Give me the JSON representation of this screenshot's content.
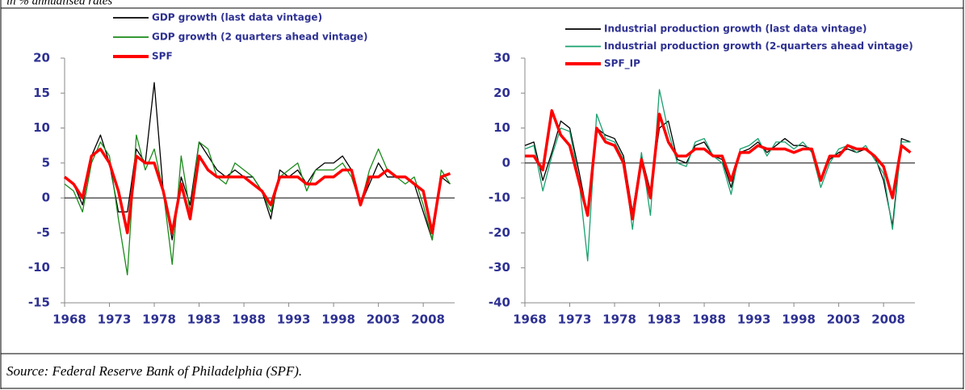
{
  "subtitle": "in % annualised rates",
  "source": "Source: Federal Reserve Bank of Philadelphia (SPF).",
  "chart_data": [
    {
      "type": "line",
      "x": [
        1968,
        1969,
        1970,
        1971,
        1972,
        1973,
        1974,
        1975,
        1976,
        1977,
        1978,
        1979,
        1980,
        1981,
        1982,
        1983,
        1984,
        1985,
        1986,
        1987,
        1988,
        1989,
        1990,
        1991,
        1992,
        1993,
        1994,
        1995,
        1996,
        1997,
        1998,
        1999,
        2000,
        2001,
        2002,
        2003,
        2004,
        2005,
        2006,
        2007,
        2008,
        2009,
        2010,
        2011
      ],
      "xlim": [
        1968,
        2011.5
      ],
      "xticks": [
        1968,
        1973,
        1978,
        1983,
        1988,
        1993,
        1998,
        2003,
        2008
      ],
      "ylim": [
        -15,
        20
      ],
      "yticks": [
        -15,
        -10,
        -5,
        0,
        5,
        10,
        15,
        20
      ],
      "series": [
        {
          "name": "GDP growth (last data vintage)",
          "color": "#000000",
          "values": [
            3,
            2,
            -1,
            6,
            9,
            5,
            -2,
            -2,
            7,
            5,
            16.5,
            1,
            -6,
            3,
            -1,
            8,
            6,
            4,
            3,
            4,
            3,
            3,
            1,
            -3,
            4,
            3,
            4,
            2,
            4,
            5,
            5,
            6,
            4,
            -1,
            2,
            5,
            3,
            3,
            3,
            2,
            -2,
            -6,
            3,
            2
          ]
        },
        {
          "name": "GDP growth (2 quarters ahead vintage)",
          "color": "#1a8a1a",
          "values": [
            2,
            1,
            -2,
            5,
            8,
            6,
            -3,
            -11,
            9,
            4,
            7,
            1,
            -9.5,
            6,
            -2,
            8,
            7,
            3,
            2,
            5,
            4,
            3,
            1,
            -2,
            3,
            4,
            5,
            1,
            4,
            4,
            4,
            5,
            3,
            -1,
            4,
            7,
            4,
            3,
            2,
            3,
            -1,
            -6,
            4,
            2
          ]
        },
        {
          "name": "SPF",
          "color": "#ff0000",
          "values": [
            3,
            2,
            0,
            6,
            7,
            5,
            1,
            -5,
            6,
            5,
            5,
            1,
            -5,
            2,
            -3,
            6,
            4,
            3,
            3,
            3,
            3,
            2,
            1,
            -1,
            3,
            3,
            3,
            2,
            2,
            3,
            3,
            4,
            4,
            -1,
            3,
            3,
            4,
            3,
            3,
            2,
            1,
            -5,
            3,
            3.5
          ]
        }
      ]
    },
    {
      "type": "line",
      "x": [
        1968,
        1969,
        1970,
        1971,
        1972,
        1973,
        1974,
        1975,
        1976,
        1977,
        1978,
        1979,
        1980,
        1981,
        1982,
        1983,
        1984,
        1985,
        1986,
        1987,
        1988,
        1989,
        1990,
        1991,
        1992,
        1993,
        1994,
        1995,
        1996,
        1997,
        1998,
        1999,
        2000,
        2001,
        2002,
        2003,
        2004,
        2005,
        2006,
        2007,
        2008,
        2009,
        2010,
        2011
      ],
      "xlim": [
        1968,
        2011.5
      ],
      "xticks": [
        1968,
        1973,
        1978,
        1983,
        1988,
        1993,
        1998,
        2003,
        2008
      ],
      "ylim": [
        -40,
        30
      ],
      "yticks": [
        -40,
        -30,
        -20,
        -10,
        0,
        10,
        20,
        30
      ],
      "series": [
        {
          "name": "Industrial production growth (last data vintage)",
          "color": "#000000",
          "values": [
            5,
            6,
            -5,
            3,
            12,
            10,
            -2,
            -15,
            10,
            8,
            7,
            2,
            -14,
            2,
            -8,
            10,
            12,
            1,
            0,
            5,
            6,
            2,
            1,
            -7,
            3,
            4,
            6,
            3,
            5,
            7,
            5,
            5,
            4,
            -5,
            1,
            3,
            4,
            3,
            4,
            2,
            -5,
            -18,
            7,
            6
          ]
        },
        {
          "name": "Industrial production growth (2-quarters ahead vintage)",
          "color": "#19a06e",
          "values": [
            4,
            5,
            -8,
            2,
            10,
            9,
            -4,
            -28,
            14,
            7,
            6,
            1,
            -19,
            3,
            -15,
            21,
            9,
            0,
            -1,
            6,
            7,
            2,
            0,
            -9,
            4,
            5,
            7,
            2,
            6,
            6,
            4,
            6,
            3,
            -7,
            0,
            4,
            5,
            3,
            5,
            1,
            -3,
            -19,
            6,
            6
          ]
        },
        {
          "name": "SPF_IP",
          "color": "#ff0000",
          "values": [
            2,
            2,
            -2,
            15,
            8,
            5,
            -5,
            -15,
            10,
            6,
            5,
            0,
            -16,
            1,
            -10,
            14,
            6,
            2,
            2,
            4,
            4,
            2,
            2,
            -5,
            3,
            3,
            5,
            4,
            4,
            4,
            3,
            4,
            4,
            -5,
            2,
            2,
            5,
            4,
            4,
            2,
            -1,
            -10,
            5,
            3
          ]
        }
      ]
    }
  ]
}
